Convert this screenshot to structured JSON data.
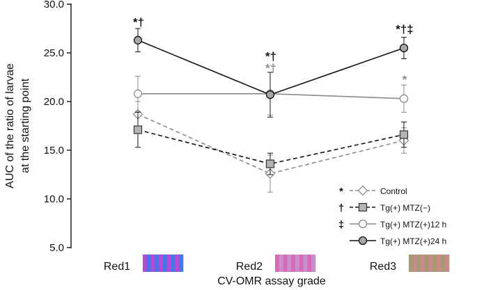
{
  "chart_data": {
    "type": "line",
    "xlabel": "CV-OMR assay grade",
    "ylabel_lines": [
      "AUC of the ratio of larvae",
      "at the starting point"
    ],
    "ylim": [
      5.0,
      30.0
    ],
    "yticks": [
      "5.0",
      "10.0",
      "15.0",
      "20.0",
      "25.0",
      "30.0"
    ],
    "categories": [
      "Red1",
      "Red2",
      "Red3"
    ],
    "category_swatches": [
      {
        "stripe_a": "#b24dd8",
        "stripe_b": "#4a74e8"
      },
      {
        "stripe_a": "#d86aba",
        "stripe_b": "#c98fc8"
      },
      {
        "stripe_a": "#a69a72",
        "stripe_b": "#c98a8a"
      }
    ],
    "series": [
      {
        "name": "Control",
        "symbol": "*",
        "marker": "diamond",
        "line": "dashed",
        "line_color": "#8c8c8c",
        "marker_fill": "#ffffff",
        "marker_stroke": "#8c8c8c",
        "values": [
          18.7,
          12.6,
          16.0
        ],
        "errors": [
          1.3,
          1.9,
          1.3
        ]
      },
      {
        "name": "Tg(+) MTZ(−)",
        "symbol": "†",
        "marker": "square",
        "line": "dashed",
        "line_color": "#111111",
        "marker_fill": "#b3b3b3",
        "marker_stroke": "#333333",
        "values": [
          17.1,
          13.6,
          16.6
        ],
        "errors": [
          1.8,
          1.1,
          1.3
        ]
      },
      {
        "name": "Tg(+) MTZ(+)12 h",
        "symbol": "‡",
        "marker": "circle",
        "line": "solid",
        "line_color": "#8c8c8c",
        "marker_fill": "#ffffff",
        "marker_stroke": "#8c8c8c",
        "values": [
          20.8,
          20.8,
          20.3
        ],
        "errors": [
          1.8,
          2.2,
          1.4
        ]
      },
      {
        "name": "Tg(+) MTZ(+)24 h",
        "symbol": "",
        "marker": "circle",
        "line": "solid",
        "line_color": "#111111",
        "marker_fill": "#a6a6a6",
        "marker_stroke": "#111111",
        "values": [
          26.3,
          20.7,
          25.5
        ],
        "errors": [
          1.2,
          2.3,
          1.1
        ]
      }
    ],
    "annotations": [
      {
        "category": "Red1",
        "value": 28.1,
        "text": "*†",
        "color": "#111111"
      },
      {
        "category": "Red2",
        "value": 24.6,
        "text": "*†",
        "color": "#111111"
      },
      {
        "category": "Red2",
        "value": 23.4,
        "text": "*†",
        "color": "#8c8c8c"
      },
      {
        "category": "Red3",
        "value": 27.4,
        "text": "*†‡",
        "color": "#111111"
      },
      {
        "category": "Red3",
        "value": 22.2,
        "text": "*",
        "color": "#8c8c8c"
      }
    ],
    "legend_position": "bottom-right",
    "grid": false
  }
}
